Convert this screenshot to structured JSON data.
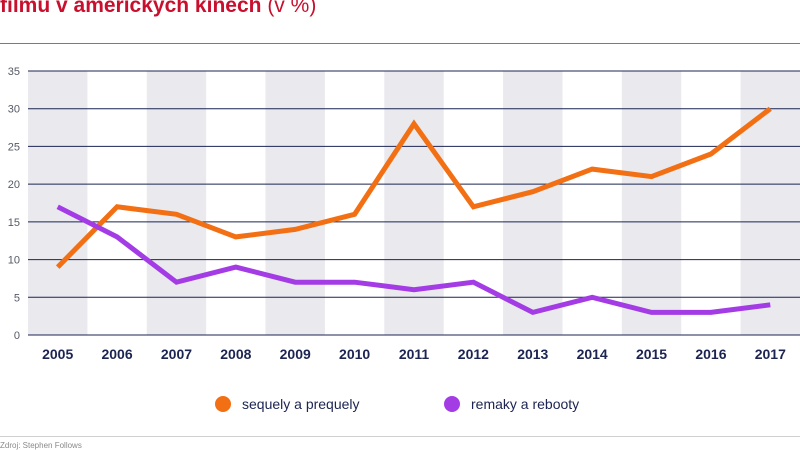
{
  "title": {
    "main": "filmů v amerických kinech",
    "unit": "(v %)"
  },
  "source": "Zdroj: Stephen Follows",
  "chart_data": {
    "type": "line",
    "x": [
      "2005",
      "2006",
      "2007",
      "2008",
      "2009",
      "2010",
      "2011",
      "2012",
      "2013",
      "2014",
      "2015",
      "2016",
      "2017"
    ],
    "series": [
      {
        "name": "sequely a prequely",
        "color": "#f36f13",
        "values": [
          9,
          17,
          16,
          13,
          14,
          16,
          28,
          17,
          19,
          22,
          21,
          24,
          30
        ]
      },
      {
        "name": "remaky a rebooty",
        "color": "#a43ce6",
        "values": [
          17,
          13,
          7,
          9,
          7,
          7,
          6,
          7,
          3,
          5,
          3,
          3,
          4
        ]
      }
    ],
    "ylim": [
      0,
      35
    ],
    "yticks": [
      0,
      5,
      10,
      15,
      20,
      25,
      30,
      35
    ],
    "grid": true,
    "band_color": "#e9e9ee",
    "grid_color": "#1c2452",
    "legend_position": "bottom-center"
  }
}
